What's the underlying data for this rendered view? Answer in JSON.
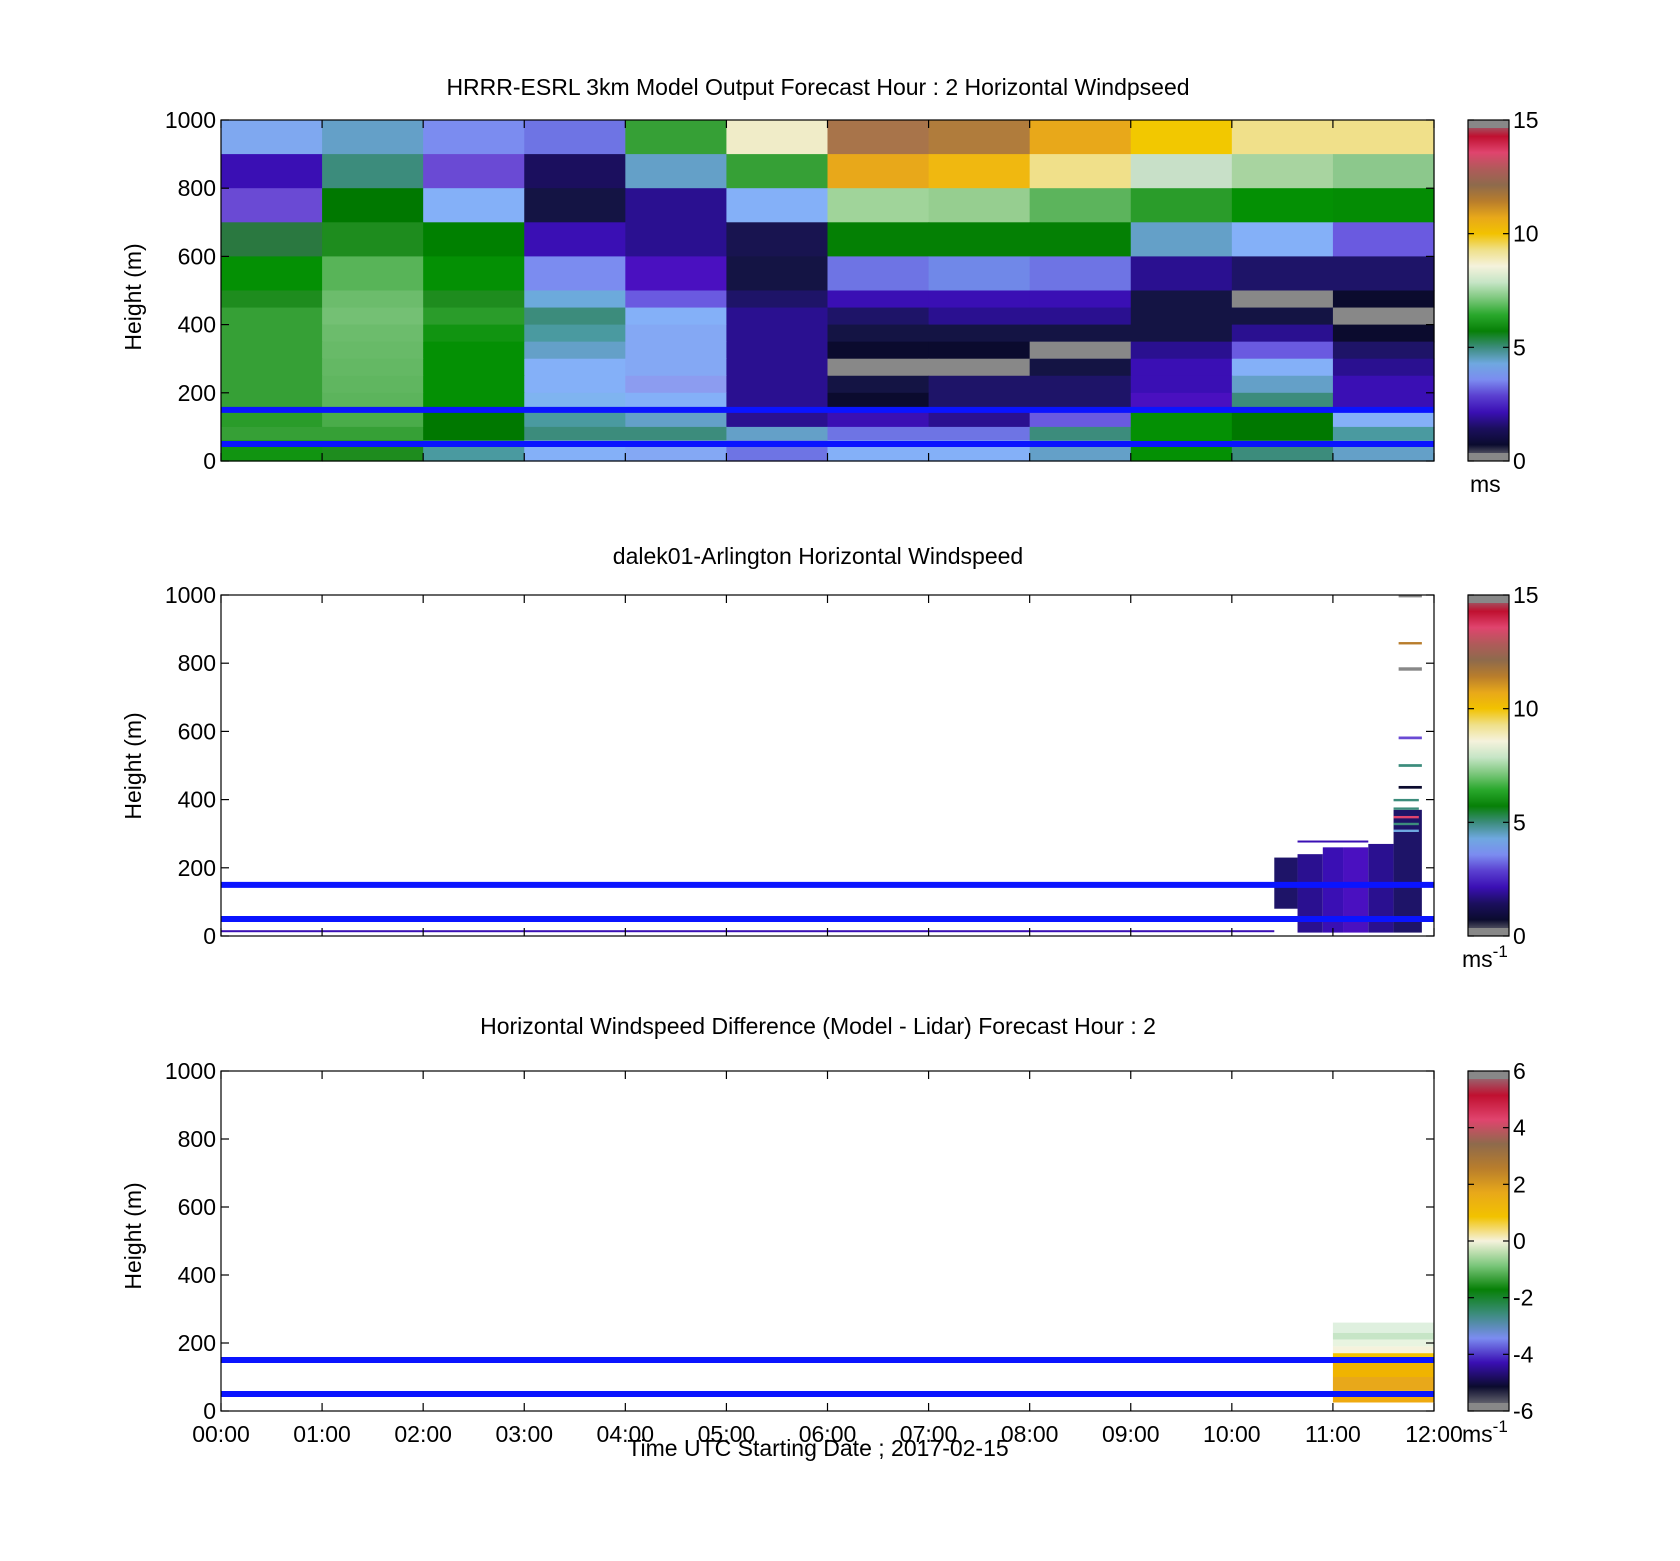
{
  "colors": {
    "ref_line": "#0a14ff",
    "speed_scale": [
      "#888888",
      "#0b0b2e",
      "#1b0f5e",
      "#3a0fb4",
      "#5a3fd0",
      "#7b8cf0",
      "#6fa8e0",
      "#3c8c7c",
      "#078007",
      "#29a82c",
      "#7cc77c",
      "#c6e5c6",
      "#f5f2dc",
      "#efe08a",
      "#f2c200",
      "#e8a81a",
      "#b87d2c",
      "#8e6a4c",
      "#b05a5a",
      "#e0446e",
      "#c01030",
      "#888888"
    ],
    "diff_scale": [
      "#888888",
      "#0b0b2e",
      "#3a0fb4",
      "#7b8cf0",
      "#3c8c7c",
      "#078007",
      "#7cc77c",
      "#f5f2dc",
      "#f2c200",
      "#e8a81a",
      "#b87d2c",
      "#8e6a4c",
      "#e0446e",
      "#c01030",
      "#888888"
    ]
  },
  "chart_data": [
    {
      "type": "heatmap",
      "title": "HRRR-ESRL 3km Model Output   Forecast Hour : 2 Horizontal Windpseed",
      "ylabel": "Height (m)",
      "xlabel": "",
      "ylim": [
        0,
        1000
      ],
      "y_ticks": [
        "0",
        "200",
        "400",
        "600",
        "800",
        "1000"
      ],
      "x_range": [
        "00:00",
        "12:00"
      ],
      "colorbar": {
        "ticks": [
          "0",
          "5",
          "10",
          "15"
        ],
        "range": [
          0,
          15
        ],
        "unit_label": "ms"
      },
      "ref_lines": [
        150,
        50
      ],
      "time_columns": [
        "00:00",
        "01:00",
        "02:00",
        "03:00",
        "04:00",
        "05:00",
        "06:00",
        "07:00",
        "08:00",
        "09:00",
        "10:00",
        "11:00"
      ],
      "cells": [
        [
          "#7fa8f0",
          "#64a0c8",
          "#7b8cf0",
          "#6e74e4",
          "#36a036",
          "#f0ecc8",
          "#a8744a",
          "#b07c3c",
          "#e8a81a",
          "#f2c800",
          "#f0e08a",
          "#f0e08a",
          900,
          1000
        ],
        [
          "#3a0fb4",
          "#3c8c7c",
          "#6a4ad4",
          "#1b0f5e",
          "#64a0c8",
          "#36a036",
          "#e8a81a",
          "#f0b810",
          "#f0e08a",
          "#c8e0c8",
          "#a8d4a0",
          "#8cc88c",
          800,
          900
        ],
        [
          "#6a4ad4",
          "#007800",
          "#84b0f8",
          "#141444",
          "#2a1090",
          "#84b0f8",
          "#a0d49a",
          "#96ce90",
          "#5cb45c",
          "#2a9c2a",
          "#049004",
          "#048c04",
          700,
          800
        ],
        [
          "#2a7840",
          "#1e8c1e",
          "#008000",
          "#3a0fb4",
          "#2a1090",
          "#181450",
          "#048004",
          "#048004",
          "#048004",
          "#64a0c8",
          "#84b0f8",
          "#6a5ae0",
          600,
          700
        ],
        [
          "#049004",
          "#58b458",
          "#049004",
          "#7b8cf0",
          "#4a10c0",
          "#141444",
          "#6e74e4",
          "#7088e8",
          "#6e74e4",
          "#2a1090",
          "#1e1468",
          "#1e1468",
          500,
          600
        ],
        [
          "#1e8c1e",
          "#6cbc6c",
          "#1e8c1e",
          "#6caadc",
          "#6a5ae0",
          "#1e1468",
          "#3a0fb4",
          "#3a0fb4",
          "#3a0fb4",
          "#141444",
          "#888888",
          "#0b0b2e",
          450,
          500
        ],
        [
          "#36a036",
          "#74c074",
          "#2a9c2a",
          "#3c8c7c",
          "#84b0f8",
          "#2a1090",
          "#1e1468",
          "#2a1090",
          "#2a1090",
          "#141444",
          "#141444",
          "#888888",
          400,
          450
        ],
        [
          "#36a036",
          "#6cbc6c",
          "#119411",
          "#4a9aa0",
          "#84a8f4",
          "#2a1090",
          "#141444",
          "#141444",
          "#141444",
          "#141444",
          "#2a1090",
          "#0b0b2e",
          350,
          400
        ],
        [
          "#36a036",
          "#68ba68",
          "#049004",
          "#64a0c8",
          "#84a8f4",
          "#2a1090",
          "#0b0b2e",
          "#0b0b2e",
          "#888888",
          "#2a1090",
          "#6a5ae0",
          "#1e1468",
          300,
          350
        ],
        [
          "#36a036",
          "#64b864",
          "#049004",
          "#84b0f8",
          "#84a8f4",
          "#2a1090",
          "#888888",
          "#888888",
          "#141444",
          "#3a0fb4",
          "#84b0f8",
          "#2a1090",
          250,
          300
        ],
        [
          "#36a036",
          "#60b660",
          "#049004",
          "#84b0f8",
          "#8c9cf0",
          "#2a1090",
          "#141444",
          "#1e1468",
          "#1e1468",
          "#3a0fb4",
          "#64a0c8",
          "#3a0fb4",
          200,
          250
        ],
        [
          "#36a036",
          "#5cb45c",
          "#049004",
          "#7fb4f0",
          "#84b0f8",
          "#2a1090",
          "#0b0b2e",
          "#1e1468",
          "#1e1468",
          "#4a10c0",
          "#3c8c7c",
          "#3a0fb4",
          150,
          200
        ],
        [
          "#2a9c2a",
          "#4aac4a",
          "#007800",
          "#4a9aa0",
          "#64a0c8",
          "#2a1090",
          "#3a0fb4",
          "#2a1090",
          "#6a5ae0",
          "#049004",
          "#007800",
          "#84b0f8",
          100,
          150
        ],
        [
          "#36a036",
          "#36a036",
          "#007800",
          "#3c8c7c",
          "#3c8c7c",
          "#64a0c8",
          "#6e74e4",
          "#6e74e4",
          "#3c8c7c",
          "#049004",
          "#007800",
          "#4a9aa0",
          60,
          100
        ],
        [
          "#119411",
          "#1e8c1e",
          "#4a9aa0",
          "#84b0f8",
          "#84a8f4",
          "#6e74e4",
          "#84b0f8",
          "#84b0f8",
          "#64a0c8",
          "#049004",
          "#3c8c7c",
          "#64a0c8",
          0,
          60
        ]
      ]
    },
    {
      "type": "heatmap",
      "title": "dalek01-Arlington  Horizontal Windspeed",
      "ylabel": "Height (m)",
      "xlabel": "",
      "ylim": [
        0,
        1000
      ],
      "y_ticks": [
        "0",
        "200",
        "400",
        "600",
        "800",
        "1000"
      ],
      "x_range": [
        "00:00",
        "12:00"
      ],
      "colorbar": {
        "ticks": [
          "0",
          "5",
          "10",
          "15"
        ],
        "range": [
          0,
          15
        ],
        "unit_label": "ms",
        "unit_sup": "-1"
      },
      "ref_lines": [
        150,
        50
      ],
      "segments": [
        [
          0.0,
          10.42,
          12,
          17,
          "#3a0fb4"
        ],
        [
          10.42,
          10.65,
          80,
          230,
          "#1e1468"
        ],
        [
          10.65,
          10.9,
          10,
          240,
          "#2a1090"
        ],
        [
          10.9,
          11.1,
          10,
          260,
          "#3a0fb4"
        ],
        [
          11.1,
          11.35,
          10,
          260,
          "#4a10c0"
        ],
        [
          11.35,
          11.6,
          10,
          270,
          "#2a1090"
        ],
        [
          11.6,
          11.88,
          10,
          370,
          "#1e1468"
        ],
        [
          10.65,
          11.35,
          275,
          280,
          "#3a0fb4"
        ],
        [
          11.6,
          11.85,
          395,
          402,
          "#3c8c7c"
        ],
        [
          11.6,
          11.85,
          370,
          377,
          "#3c8c7c"
        ],
        [
          11.6,
          11.85,
          345,
          352,
          "#e0446e"
        ],
        [
          11.6,
          11.85,
          325,
          332,
          "#3c8c7c"
        ],
        [
          11.6,
          11.85,
          305,
          312,
          "#6fa8e0"
        ],
        [
          11.65,
          11.88,
          432,
          440,
          "#0b0b2e"
        ],
        [
          11.65,
          11.88,
          496,
          504,
          "#3c8c7c"
        ],
        [
          11.65,
          11.88,
          577,
          585,
          "#6a4ad4"
        ],
        [
          11.65,
          11.88,
          778,
          788,
          "#888888"
        ],
        [
          11.65,
          11.88,
          855,
          862,
          "#b87d2c"
        ],
        [
          11.65,
          11.88,
          993,
          1000,
          "#888888"
        ]
      ]
    },
    {
      "type": "heatmap",
      "title": "Horizontal Windspeed Difference (Model - Lidar) Forecast Hour : 2",
      "xlabel": "Time UTC  Starting Date ; 2017-02-15",
      "ylabel": "Height (m)",
      "ylim": [
        0,
        1000
      ],
      "y_ticks": [
        "0",
        "200",
        "400",
        "600",
        "800",
        "1000"
      ],
      "x_ticks": [
        "00:00",
        "01:00",
        "02:00",
        "03:00",
        "04:00",
        "05:00",
        "06:00",
        "07:00",
        "08:00",
        "09:00",
        "10:00",
        "11:00",
        "12:00"
      ],
      "colorbar": {
        "ticks": [
          "-6",
          "-4",
          "-2",
          "0",
          "2",
          "4",
          "6"
        ],
        "range": [
          -6,
          6
        ],
        "unit_label": "ms",
        "unit_sup": "-1"
      },
      "ref_lines": [
        150,
        50
      ],
      "segments": [
        [
          11.0,
          12.0,
          230,
          260,
          "#dff0df"
        ],
        [
          11.0,
          12.0,
          210,
          230,
          "#c6e5c6"
        ],
        [
          11.0,
          12.0,
          190,
          210,
          "#e8f4e0"
        ],
        [
          11.0,
          12.0,
          170,
          190,
          "#f5f2dc"
        ],
        [
          11.0,
          12.0,
          150,
          170,
          "#f2c200"
        ],
        [
          11.0,
          12.0,
          100,
          150,
          "#f0b400"
        ],
        [
          11.0,
          12.0,
          60,
          100,
          "#e8a81a"
        ],
        [
          11.0,
          12.0,
          25,
          60,
          "#efaa10"
        ]
      ]
    }
  ]
}
